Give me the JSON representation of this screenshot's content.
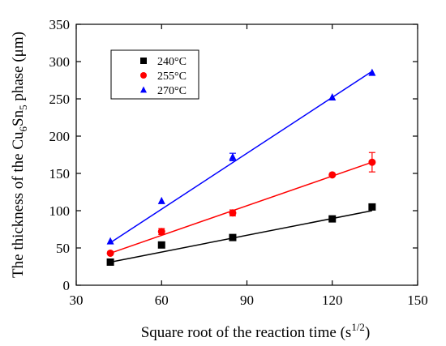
{
  "chart_data": {
    "type": "scatter",
    "xlabel": "Square root of the reaction time (s",
    "xlabel_sup": "1/2",
    "xlabel_end": ")",
    "ylabel_pre": "The thickness of the Cu",
    "ylabel_sub1": "6",
    "ylabel_mid": "Sn",
    "ylabel_sub2": "5",
    "ylabel_post": " phase (μm)",
    "xlim": [
      30,
      150
    ],
    "ylim": [
      0,
      350
    ],
    "xticks": [
      30,
      60,
      90,
      120,
      150
    ],
    "yticks": [
      0,
      50,
      100,
      150,
      200,
      250,
      300,
      350
    ],
    "grid": false,
    "legend_position": "top-left",
    "series": [
      {
        "name": "240°C",
        "color": "#000000",
        "marker": "square",
        "x": [
          42,
          60,
          85,
          120,
          134
        ],
        "y": [
          31,
          54,
          64,
          89,
          105
        ],
        "error": [
          0,
          0,
          0,
          0,
          0
        ],
        "fit": {
          "x": [
            42,
            134
          ],
          "y": [
            31,
            100
          ]
        }
      },
      {
        "name": "255°C",
        "color": "#ff0000",
        "marker": "circle",
        "x": [
          42,
          60,
          85,
          120,
          134
        ],
        "y": [
          43,
          72,
          97,
          148,
          165
        ],
        "error": [
          0,
          4,
          4,
          0,
          13
        ],
        "fit": {
          "x": [
            42,
            134
          ],
          "y": [
            43,
            165
          ]
        }
      },
      {
        "name": "270°C",
        "color": "#0000ff",
        "marker": "triangle",
        "x": [
          42,
          60,
          85,
          120,
          134
        ],
        "y": [
          59,
          113,
          172,
          252,
          285
        ],
        "error": [
          0,
          0,
          5,
          0,
          0
        ],
        "fit": {
          "x": [
            42,
            134
          ],
          "y": [
            57,
            287
          ]
        }
      }
    ]
  }
}
